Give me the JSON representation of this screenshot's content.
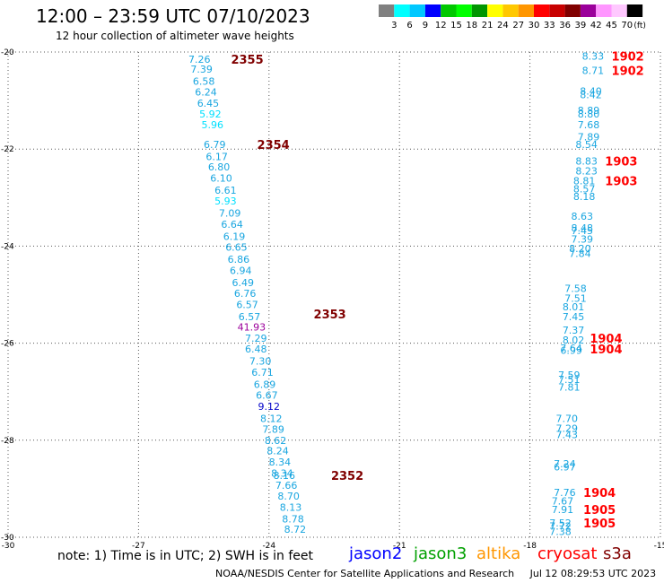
{
  "header": {
    "title": "12:00 – 23:59 UTC 07/10/2023",
    "subtitle": "12 hour collection of altimeter wave heights"
  },
  "colorbar": {
    "unit_label": "(ft)",
    "ticks": [
      "3",
      "6",
      "9",
      "12",
      "15",
      "18",
      "21",
      "24",
      "27",
      "30",
      "33",
      "36",
      "39",
      "42",
      "45",
      "70"
    ],
    "colors": [
      "#808080",
      "#00ffff",
      "#00c8ff",
      "#0000ff",
      "#00c800",
      "#00ff00",
      "#009600",
      "#ffff00",
      "#ffc800",
      "#ff9600",
      "#ff0000",
      "#c80000",
      "#800000",
      "#9b009b",
      "#ff96ff",
      "#ffc8ff",
      "#000000"
    ]
  },
  "chart_data": {
    "type": "scatter",
    "xlim": [
      -30,
      -15
    ],
    "ylim": [
      -30,
      -20
    ],
    "x_ticks": [
      "-30",
      "-27",
      "-24",
      "-21",
      "-18",
      "-15"
    ],
    "y_ticks": [
      "-20",
      "-22",
      "-24",
      "-26",
      "-28",
      "-30"
    ],
    "points": [
      {
        "lon": -25.6,
        "lat": -20.15,
        "v": "7.26",
        "c": "#1aa6e0"
      },
      {
        "lon": -25.55,
        "lat": -20.35,
        "v": "7.39",
        "c": "#1aa6e0"
      },
      {
        "lon": -25.5,
        "lat": -20.6,
        "v": "6.58",
        "c": "#1aa6e0"
      },
      {
        "lon": -25.45,
        "lat": -20.82,
        "v": "6.24",
        "c": "#1aa6e0"
      },
      {
        "lon": -25.4,
        "lat": -21.05,
        "v": "6.45",
        "c": "#1aa6e0"
      },
      {
        "lon": -25.35,
        "lat": -21.28,
        "v": "5.92",
        "c": "#00e0ff"
      },
      {
        "lon": -25.3,
        "lat": -21.5,
        "v": "5.96",
        "c": "#00e0ff"
      },
      {
        "lon": -25.25,
        "lat": -21.9,
        "v": "6.79",
        "c": "#1aa6e0"
      },
      {
        "lon": -25.2,
        "lat": -22.15,
        "v": "6.17",
        "c": "#1aa6e0"
      },
      {
        "lon": -25.15,
        "lat": -22.37,
        "v": "6.80",
        "c": "#1aa6e0"
      },
      {
        "lon": -25.1,
        "lat": -22.6,
        "v": "6.10",
        "c": "#1aa6e0"
      },
      {
        "lon": -25.0,
        "lat": -22.85,
        "v": "6.61",
        "c": "#1aa6e0"
      },
      {
        "lon": -25.0,
        "lat": -23.07,
        "v": "5.93",
        "c": "#00e0ff"
      },
      {
        "lon": -24.9,
        "lat": -23.32,
        "v": "7.09",
        "c": "#1aa6e0"
      },
      {
        "lon": -24.85,
        "lat": -23.55,
        "v": "6.64",
        "c": "#1aa6e0"
      },
      {
        "lon": -24.8,
        "lat": -23.8,
        "v": "6.19",
        "c": "#1aa6e0"
      },
      {
        "lon": -24.75,
        "lat": -24.02,
        "v": "6.65",
        "c": "#1aa6e0"
      },
      {
        "lon": -24.7,
        "lat": -24.27,
        "v": "6.86",
        "c": "#1aa6e0"
      },
      {
        "lon": -24.65,
        "lat": -24.5,
        "v": "6.94",
        "c": "#1aa6e0"
      },
      {
        "lon": -24.6,
        "lat": -24.75,
        "v": "6.49",
        "c": "#1aa6e0"
      },
      {
        "lon": -24.55,
        "lat": -24.97,
        "v": "6.76",
        "c": "#1aa6e0"
      },
      {
        "lon": -24.5,
        "lat": -25.2,
        "v": "6.57",
        "c": "#1aa6e0"
      },
      {
        "lon": -24.45,
        "lat": -25.45,
        "v": "6.57",
        "c": "#1aa6e0"
      },
      {
        "lon": -24.4,
        "lat": -25.67,
        "v": "41.93",
        "c": "#9b009b"
      },
      {
        "lon": -24.3,
        "lat": -25.9,
        "v": "7.29",
        "c": "#1aa6e0"
      },
      {
        "lon": -24.3,
        "lat": -26.12,
        "v": "6.48",
        "c": "#1aa6e0"
      },
      {
        "lon": -24.2,
        "lat": -26.37,
        "v": "7.30",
        "c": "#1aa6e0"
      },
      {
        "lon": -24.15,
        "lat": -26.6,
        "v": "6.71",
        "c": "#1aa6e0"
      },
      {
        "lon": -24.1,
        "lat": -26.85,
        "v": "6.89",
        "c": "#1aa6e0"
      },
      {
        "lon": -24.05,
        "lat": -27.07,
        "v": "6.67",
        "c": "#1aa6e0"
      },
      {
        "lon": -24.0,
        "lat": -27.3,
        "v": "9.12",
        "c": "#0000c8"
      },
      {
        "lon": -23.95,
        "lat": -27.55,
        "v": "8.12",
        "c": "#1aa6e0"
      },
      {
        "lon": -23.9,
        "lat": -27.77,
        "v": "7.89",
        "c": "#1aa6e0"
      },
      {
        "lon": -23.85,
        "lat": -28.0,
        "v": "8.62",
        "c": "#1aa6e0"
      },
      {
        "lon": -23.8,
        "lat": -28.22,
        "v": "8.24",
        "c": "#1aa6e0"
      },
      {
        "lon": -23.75,
        "lat": -28.45,
        "v": "8.34",
        "c": "#1aa6e0"
      },
      {
        "lon": -23.7,
        "lat": -28.68,
        "v": "8.34",
        "c": "#1aa6e0"
      },
      {
        "lon": -23.65,
        "lat": -28.72,
        "v": "8.16",
        "c": "#1aa6e0"
      },
      {
        "lon": -23.6,
        "lat": -28.93,
        "v": "7.66",
        "c": "#1aa6e0"
      },
      {
        "lon": -23.55,
        "lat": -29.15,
        "v": "8.70",
        "c": "#1aa6e0"
      },
      {
        "lon": -23.5,
        "lat": -29.38,
        "v": "8.13",
        "c": "#1aa6e0"
      },
      {
        "lon": -23.45,
        "lat": -29.62,
        "v": "8.78",
        "c": "#1aa6e0"
      },
      {
        "lon": -23.4,
        "lat": -29.83,
        "v": "8.72",
        "c": "#1aa6e0"
      },
      {
        "lon": -16.55,
        "lat": -20.08,
        "v": "8.33",
        "c": "#1aa6e0"
      },
      {
        "lon": -16.55,
        "lat": -20.38,
        "v": "8.71",
        "c": "#1aa6e0"
      },
      {
        "lon": -16.6,
        "lat": -20.8,
        "v": "8.40",
        "c": "#1aa6e0"
      },
      {
        "lon": -16.6,
        "lat": -20.88,
        "v": "8.42",
        "c": "#1aa6e0"
      },
      {
        "lon": -16.65,
        "lat": -21.2,
        "v": "8.89",
        "c": "#1aa6e0"
      },
      {
        "lon": -16.65,
        "lat": -21.28,
        "v": "8.80",
        "c": "#1aa6e0"
      },
      {
        "lon": -16.65,
        "lat": -21.5,
        "v": "7.68",
        "c": "#1aa6e0"
      },
      {
        "lon": -16.65,
        "lat": -21.75,
        "v": "7.89",
        "c": "#1aa6e0"
      },
      {
        "lon": -16.7,
        "lat": -21.9,
        "v": "8.54",
        "c": "#1aa6e0"
      },
      {
        "lon": -16.7,
        "lat": -22.25,
        "v": "8.83",
        "c": "#1aa6e0"
      },
      {
        "lon": -16.7,
        "lat": -22.45,
        "v": "8.23",
        "c": "#1aa6e0"
      },
      {
        "lon": -16.75,
        "lat": -22.65,
        "v": "8.81",
        "c": "#1aa6e0"
      },
      {
        "lon": -16.75,
        "lat": -22.82,
        "v": "8.57",
        "c": "#1aa6e0"
      },
      {
        "lon": -16.75,
        "lat": -22.98,
        "v": "8.18",
        "c": "#1aa6e0"
      },
      {
        "lon": -16.8,
        "lat": -23.38,
        "v": "8.63",
        "c": "#1aa6e0"
      },
      {
        "lon": -16.8,
        "lat": -23.62,
        "v": "8.48",
        "c": "#1aa6e0"
      },
      {
        "lon": -16.8,
        "lat": -23.68,
        "v": "7.45",
        "c": "#1aa6e0"
      },
      {
        "lon": -16.8,
        "lat": -23.85,
        "v": "7.39",
        "c": "#1aa6e0"
      },
      {
        "lon": -16.85,
        "lat": -24.05,
        "v": "8.20",
        "c": "#1aa6e0"
      },
      {
        "lon": -16.85,
        "lat": -24.15,
        "v": "7.84",
        "c": "#1aa6e0"
      },
      {
        "lon": -16.95,
        "lat": -24.87,
        "v": "7.58",
        "c": "#1aa6e0"
      },
      {
        "lon": -16.95,
        "lat": -25.07,
        "v": "7.51",
        "c": "#1aa6e0"
      },
      {
        "lon": -17.0,
        "lat": -25.25,
        "v": "8.01",
        "c": "#1aa6e0"
      },
      {
        "lon": -17.0,
        "lat": -25.45,
        "v": "7.45",
        "c": "#1aa6e0"
      },
      {
        "lon": -17.0,
        "lat": -25.73,
        "v": "7.37",
        "c": "#1aa6e0"
      },
      {
        "lon": -17.0,
        "lat": -25.93,
        "v": "8.02",
        "c": "#1aa6e0"
      },
      {
        "lon": -17.05,
        "lat": -26.1,
        "v": "7.64",
        "c": "#1aa6e0"
      },
      {
        "lon": -17.05,
        "lat": -26.15,
        "v": "6.99",
        "c": "#1aa6e0"
      },
      {
        "lon": -17.1,
        "lat": -26.65,
        "v": "7.59",
        "c": "#1aa6e0"
      },
      {
        "lon": -17.1,
        "lat": -26.75,
        "v": "7.51",
        "c": "#1aa6e0"
      },
      {
        "lon": -17.1,
        "lat": -26.9,
        "v": "7.81",
        "c": "#1aa6e0"
      },
      {
        "lon": -17.15,
        "lat": -27.55,
        "v": "7.70",
        "c": "#1aa6e0"
      },
      {
        "lon": -17.15,
        "lat": -27.75,
        "v": "7.29",
        "c": "#1aa6e0"
      },
      {
        "lon": -17.15,
        "lat": -27.88,
        "v": "7.43",
        "c": "#1aa6e0"
      },
      {
        "lon": -17.2,
        "lat": -28.48,
        "v": "7.24",
        "c": "#1aa6e0"
      },
      {
        "lon": -17.2,
        "lat": -28.55,
        "v": "6.97",
        "c": "#1aa6e0"
      },
      {
        "lon": -17.2,
        "lat": -29.08,
        "v": "7.76",
        "c": "#1aa6e0"
      },
      {
        "lon": -17.25,
        "lat": -29.25,
        "v": "7.67",
        "c": "#1aa6e0"
      },
      {
        "lon": -17.25,
        "lat": -29.43,
        "v": "7.91",
        "c": "#1aa6e0"
      },
      {
        "lon": -17.3,
        "lat": -29.7,
        "v": "7.52",
        "c": "#1aa6e0"
      },
      {
        "lon": -17.3,
        "lat": -29.77,
        "v": "7.72",
        "c": "#1aa6e0"
      },
      {
        "lon": -17.3,
        "lat": -29.88,
        "v": "7.38",
        "c": "#1aa6e0"
      }
    ],
    "time_labels": [
      {
        "lon": -24.5,
        "lat": -20.15,
        "t": "2355",
        "c": "#800000"
      },
      {
        "lon": -23.9,
        "lat": -21.9,
        "t": "2354",
        "c": "#800000"
      },
      {
        "lon": -22.6,
        "lat": -25.4,
        "t": "2353",
        "c": "#800000"
      },
      {
        "lon": -22.2,
        "lat": -28.72,
        "t": "2352",
        "c": "#800000"
      },
      {
        "lon": -15.75,
        "lat": -20.08,
        "t": "1902",
        "c": "#ff0000"
      },
      {
        "lon": -15.75,
        "lat": -20.38,
        "t": "1902",
        "c": "#ff0000"
      },
      {
        "lon": -15.9,
        "lat": -22.25,
        "t": "1903",
        "c": "#ff0000"
      },
      {
        "lon": -15.9,
        "lat": -22.65,
        "t": "1903",
        "c": "#ff0000"
      },
      {
        "lon": -16.25,
        "lat": -25.9,
        "t": "1904",
        "c": "#ff0000"
      },
      {
        "lon": -16.25,
        "lat": -26.12,
        "t": "1904",
        "c": "#ff0000"
      },
      {
        "lon": -16.4,
        "lat": -29.08,
        "t": "1904",
        "c": "#ff0000"
      },
      {
        "lon": -16.4,
        "lat": -29.43,
        "t": "1905",
        "c": "#ff0000"
      },
      {
        "lon": -16.4,
        "lat": -29.7,
        "t": "1905",
        "c": "#ff0000"
      }
    ]
  },
  "footer": {
    "note": "note:  1) Time is in UTC;  2) SWH is in feet",
    "satellites": [
      {
        "name": "jason2",
        "color": "#0000ff"
      },
      {
        "name": "jason3",
        "color": "#00a000"
      },
      {
        "name": "altika",
        "color": "#ff9600"
      },
      {
        "name": "cryosat",
        "color": "#ff0000"
      },
      {
        "name": "s3a",
        "color": "#800000"
      }
    ],
    "credit": "NOAA/NESDIS Center for Satellite Applications and Research",
    "generated": "Jul 12 08:29:53 UTC 2023"
  }
}
